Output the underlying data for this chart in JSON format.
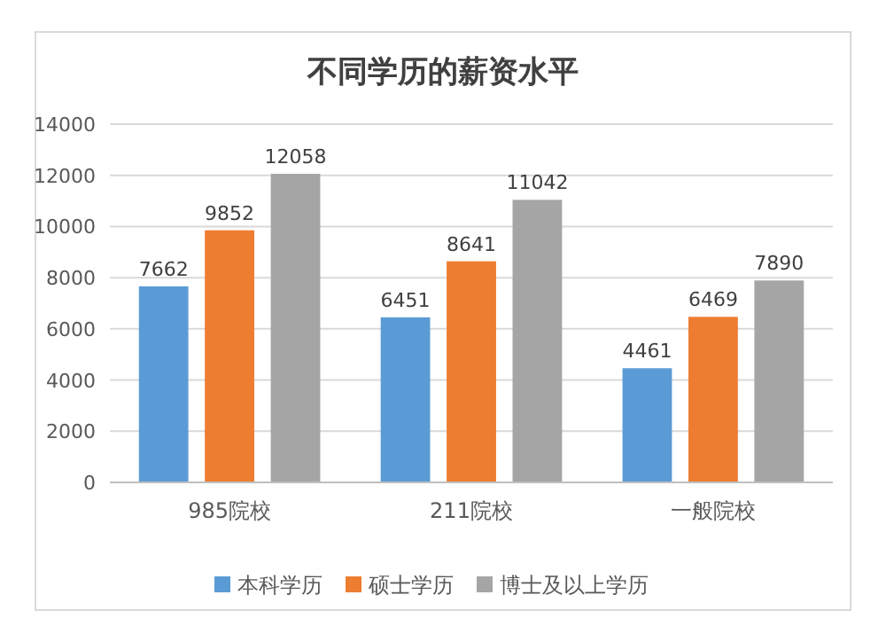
{
  "chart_data": {
    "type": "bar",
    "title": "不同学历的薪资水平",
    "categories": [
      "985院校",
      "211院校",
      "一般院校"
    ],
    "series": [
      {
        "name": "本科学历",
        "color": "#5b9bd5",
        "values": [
          7662,
          6451,
          4461
        ]
      },
      {
        "name": "硕士学历",
        "color": "#ed7d31",
        "values": [
          9852,
          8641,
          6469
        ]
      },
      {
        "name": "博士及以上学历",
        "color": "#a5a5a5",
        "values": [
          12058,
          11042,
          7890
        ]
      }
    ],
    "ylim": [
      0,
      14000
    ],
    "yticks": [
      0,
      2000,
      4000,
      6000,
      8000,
      10000,
      12000,
      14000
    ],
    "grid": "y",
    "legend": "bottom",
    "data_labels": true
  }
}
